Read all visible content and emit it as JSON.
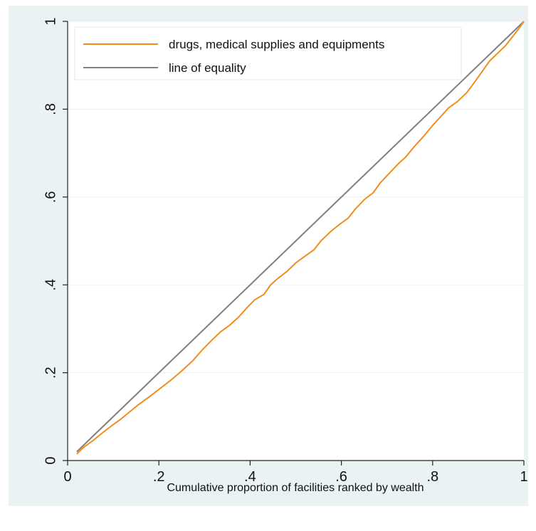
{
  "chart_data": {
    "type": "line",
    "xlabel": "Cumulative proportion of facilities ranked by wealth",
    "ylabel": "",
    "xlim": [
      0,
      1
    ],
    "ylim": [
      0,
      1
    ],
    "x_ticks": [
      {
        "value": 0,
        "label": "0"
      },
      {
        "value": 0.2,
        "label": ".2"
      },
      {
        "value": 0.4,
        "label": ".4"
      },
      {
        "value": 0.6,
        "label": ".6"
      },
      {
        "value": 0.8,
        "label": ".8"
      },
      {
        "value": 1,
        "label": "1"
      }
    ],
    "y_ticks": [
      {
        "value": 0,
        "label": "0"
      },
      {
        "value": 0.2,
        "label": ".2"
      },
      {
        "value": 0.4,
        "label": ".4"
      },
      {
        "value": 0.6,
        "label": ".6"
      },
      {
        "value": 0.8,
        "label": ".8"
      },
      {
        "value": 1,
        "label": "1"
      }
    ],
    "grid": "horizontal",
    "legend_position": "top-left inside",
    "series": [
      {
        "name": "drugs, medical supplies and equipments",
        "color": "#f28c1e",
        "x": [
          0.02,
          0.035,
          0.055,
          0.075,
          0.095,
          0.115,
          0.135,
          0.155,
          0.18,
          0.2,
          0.225,
          0.25,
          0.275,
          0.295,
          0.315,
          0.335,
          0.355,
          0.375,
          0.395,
          0.41,
          0.43,
          0.445,
          0.46,
          0.48,
          0.5,
          0.52,
          0.54,
          0.555,
          0.575,
          0.595,
          0.615,
          0.63,
          0.65,
          0.67,
          0.685,
          0.705,
          0.725,
          0.74,
          0.76,
          0.78,
          0.8,
          0.815,
          0.835,
          0.855,
          0.875,
          0.895,
          0.91,
          0.925,
          0.945,
          0.96,
          0.975,
          0.99,
          1.0
        ],
        "y": [
          0.015,
          0.03,
          0.045,
          0.062,
          0.078,
          0.093,
          0.11,
          0.127,
          0.146,
          0.162,
          0.182,
          0.204,
          0.228,
          0.252,
          0.273,
          0.293,
          0.308,
          0.327,
          0.35,
          0.366,
          0.378,
          0.4,
          0.414,
          0.43,
          0.45,
          0.465,
          0.48,
          0.5,
          0.52,
          0.537,
          0.552,
          0.572,
          0.594,
          0.61,
          0.632,
          0.654,
          0.676,
          0.69,
          0.715,
          0.738,
          0.763,
          0.78,
          0.803,
          0.818,
          0.838,
          0.866,
          0.888,
          0.91,
          0.93,
          0.945,
          0.965,
          0.985,
          1.0
        ]
      },
      {
        "name": "line of equality",
        "color": "#7f7f7f",
        "x": [
          0.02,
          1.0
        ],
        "y": [
          0.02,
          1.0
        ]
      }
    ]
  }
}
